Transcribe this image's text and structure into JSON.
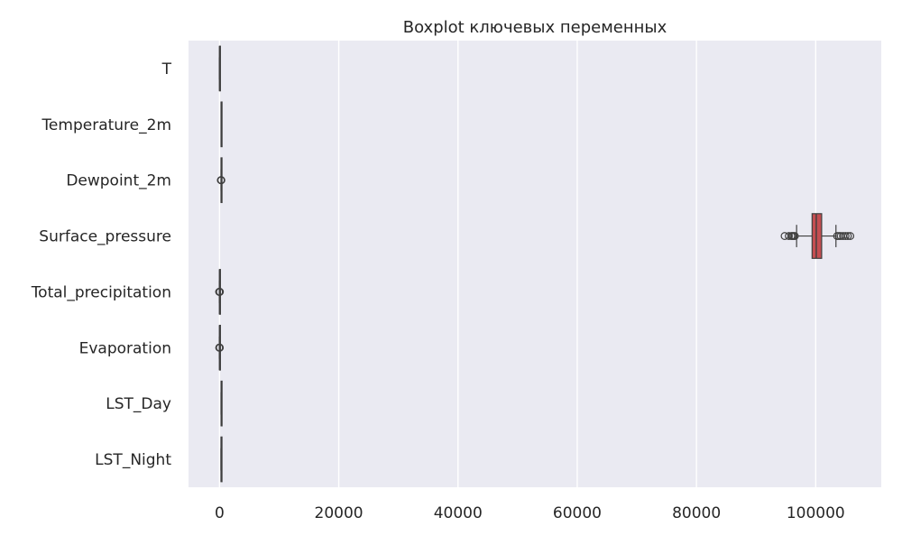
{
  "chart_data": {
    "type": "boxplot",
    "orientation": "horizontal",
    "title": "Boxplot ключевых переменных",
    "xlabel": "",
    "ylabel": "",
    "xlim": [
      -5200,
      111000
    ],
    "x_ticks": [
      0,
      20000,
      40000,
      60000,
      80000,
      100000
    ],
    "grid": true,
    "colors": {
      "background": "#eaeaf2",
      "grid": "#ffffff",
      "box_fill": "#c44e52",
      "line": "#3f3f3f"
    },
    "categories": [
      "T",
      "Temperature_2m",
      "Dewpoint_2m",
      "Surface_pressure",
      "Total_precipitation",
      "Evaporation",
      "LST_Day",
      "LST_Night"
    ],
    "boxes": [
      {
        "category": "T",
        "whisker_low": -10,
        "q1": -2,
        "median": 2,
        "q3": 6,
        "whisker_high": 14,
        "outliers": []
      },
      {
        "category": "Temperature_2m",
        "whisker_low": 260,
        "q1": 268,
        "median": 272,
        "q3": 278,
        "whisker_high": 288,
        "outliers": []
      },
      {
        "category": "Dewpoint_2m",
        "whisker_low": 255,
        "q1": 263,
        "median": 268,
        "q3": 273,
        "whisker_high": 282,
        "outliers": [
          240,
          245,
          250,
          290,
          295
        ]
      },
      {
        "category": "Surface_pressure",
        "whisker_low": 96800,
        "q1": 99400,
        "median": 100100,
        "q3": 101000,
        "whisker_high": 103400,
        "outliers": [
          94800,
          95500,
          95900,
          96100,
          96300,
          96500,
          103600,
          103900,
          104200,
          104600,
          105000,
          105400,
          105800
        ]
      },
      {
        "category": "Total_precipitation",
        "whisker_low": 0,
        "q1": 0,
        "median": 0,
        "q3": 1,
        "whisker_high": 2,
        "outliers": [
          -60,
          -30,
          30,
          60
        ]
      },
      {
        "category": "Evaporation",
        "whisker_low": -1,
        "q1": 0,
        "median": 0,
        "q3": 0,
        "whisker_high": 1,
        "outliers": [
          -50,
          -20,
          20,
          50
        ]
      },
      {
        "category": "LST_Day",
        "whisker_low": 250,
        "q1": 270,
        "median": 285,
        "q3": 300,
        "whisker_high": 330,
        "outliers": []
      },
      {
        "category": "LST_Night",
        "whisker_low": 240,
        "q1": 258,
        "median": 266,
        "q3": 275,
        "whisker_high": 292,
        "outliers": []
      }
    ]
  }
}
